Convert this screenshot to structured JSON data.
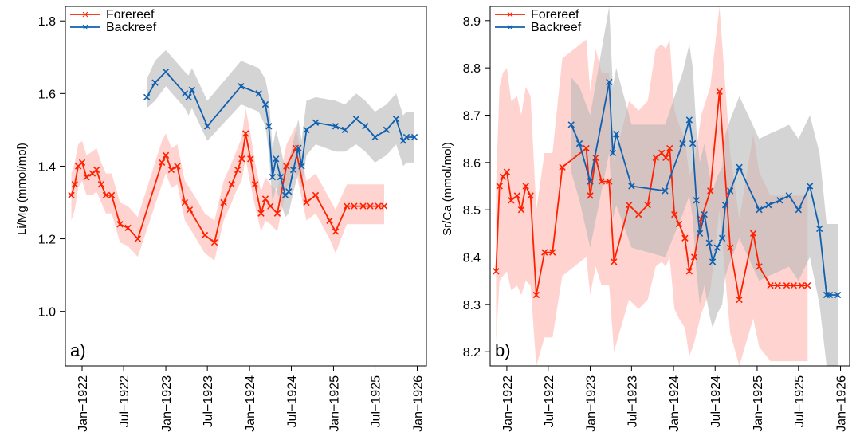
{
  "chart_data": [
    {
      "type": "line",
      "panel_label": "a)",
      "ylabel": "Li/Mg (mmol/mol)",
      "xlabel": "",
      "ylim": [
        0.85,
        1.84
      ],
      "xlim": [
        "1921-10-20",
        "1926-02-10"
      ],
      "y_ticks": [
        1.0,
        1.2,
        1.4,
        1.6,
        1.8
      ],
      "y_tick_labels": [
        "1.0",
        "1.2",
        "1.4",
        "1.6",
        "1.8"
      ],
      "x_ticks": [
        "1922-01-01",
        "1922-07-01",
        "1923-01-01",
        "1923-07-01",
        "1924-01-01",
        "1924-07-01",
        "1925-01-01",
        "1925-07-01",
        "1926-01-01"
      ],
      "x_tick_labels": [
        "Jan−1922",
        "Jul−1922",
        "Jan−1923",
        "Jul−1923",
        "Jan−1924",
        "Jul−1924",
        "Jan−1925",
        "Jul−1925",
        "Jan−1926"
      ],
      "legend": "top-left",
      "grid": false,
      "series": [
        {
          "name": "Forereef",
          "color": "#ff2000",
          "band_color": "#ffb0aa",
          "x": [
            "1921-11-15",
            "1921-11-30",
            "1921-12-15",
            "1922-01-01",
            "1922-01-20",
            "1922-02-15",
            "1922-03-05",
            "1922-03-25",
            "1922-04-15",
            "1922-05-10",
            "1922-06-15",
            "1922-07-20",
            "1922-09-01",
            "1922-12-15",
            "1923-01-01",
            "1923-01-25",
            "1923-02-20",
            "1923-03-25",
            "1923-04-15",
            "1923-06-20",
            "1923-08-01",
            "1923-09-10",
            "1923-10-15",
            "1923-11-10",
            "1923-11-28",
            "1923-12-15",
            "1924-01-05",
            "1924-01-25",
            "1924-02-20",
            "1924-03-10",
            "1924-04-01",
            "1924-05-01",
            "1924-06-10",
            "1924-07-20",
            "1924-09-05",
            "1924-10-15",
            "1924-12-15",
            "1925-01-10",
            "1925-02-28",
            "1925-04-01",
            "1925-05-10",
            "1925-06-10",
            "1925-07-15",
            "1925-08-10"
          ],
          "y": [
            1.32,
            1.35,
            1.4,
            1.41,
            1.37,
            1.38,
            1.39,
            1.35,
            1.32,
            1.32,
            1.24,
            1.23,
            1.2,
            1.41,
            1.43,
            1.39,
            1.4,
            1.3,
            1.28,
            1.21,
            1.19,
            1.3,
            1.35,
            1.39,
            1.42,
            1.49,
            1.42,
            1.35,
            1.27,
            1.31,
            1.29,
            1.27,
            1.4,
            1.45,
            1.3,
            1.32,
            1.25,
            1.22,
            1.29,
            1.29,
            1.29,
            1.29,
            1.29,
            1.29
          ],
          "lower": [
            1.25,
            1.28,
            1.34,
            1.36,
            1.32,
            1.32,
            1.33,
            1.3,
            1.27,
            1.27,
            1.19,
            1.18,
            1.15,
            1.35,
            1.38,
            1.34,
            1.35,
            1.25,
            1.23,
            1.16,
            1.14,
            1.25,
            1.3,
            1.34,
            1.36,
            1.42,
            1.35,
            1.29,
            1.22,
            1.25,
            1.24,
            1.22,
            1.34,
            1.39,
            1.25,
            1.27,
            1.2,
            1.16,
            1.24,
            1.24,
            1.24,
            1.24,
            1.24,
            1.24
          ],
          "upper": [
            1.38,
            1.41,
            1.46,
            1.47,
            1.43,
            1.44,
            1.45,
            1.41,
            1.38,
            1.38,
            1.3,
            1.29,
            1.26,
            1.47,
            1.49,
            1.45,
            1.46,
            1.36,
            1.34,
            1.27,
            1.25,
            1.36,
            1.41,
            1.45,
            1.48,
            1.56,
            1.49,
            1.41,
            1.33,
            1.37,
            1.35,
            1.33,
            1.46,
            1.51,
            1.36,
            1.38,
            1.31,
            1.28,
            1.35,
            1.35,
            1.35,
            1.35,
            1.35,
            1.35
          ]
        },
        {
          "name": "Backreef",
          "color": "#1060b0",
          "band_color": "#b8b8b8",
          "x": [
            "1922-10-10",
            "1922-11-15",
            "1923-01-01",
            "1923-03-25",
            "1923-04-10",
            "1923-04-25",
            "1923-07-01",
            "1923-11-25",
            "1924-02-10",
            "1924-03-10",
            "1924-03-25",
            "1924-04-10",
            "1924-04-25",
            "1924-05-15",
            "1924-06-05",
            "1924-06-20",
            "1924-07-10",
            "1924-08-01",
            "1924-08-15",
            "1924-09-05",
            "1924-10-15",
            "1925-01-10",
            "1925-02-20",
            "1925-04-10",
            "1925-05-20",
            "1925-07-01",
            "1925-08-20",
            "1925-10-01",
            "1925-11-01",
            "1925-11-15",
            "1925-12-20"
          ],
          "y": [
            1.59,
            1.63,
            1.66,
            1.6,
            1.59,
            1.61,
            1.51,
            1.62,
            1.6,
            1.57,
            1.51,
            1.37,
            1.42,
            1.37,
            1.32,
            1.33,
            1.39,
            1.45,
            1.4,
            1.5,
            1.52,
            1.51,
            1.5,
            1.53,
            1.51,
            1.48,
            1.5,
            1.53,
            1.47,
            1.48,
            1.48
          ],
          "lower": [
            1.56,
            1.58,
            1.62,
            1.56,
            1.54,
            1.56,
            1.47,
            1.57,
            1.55,
            1.51,
            1.44,
            1.3,
            1.34,
            1.3,
            1.26,
            1.27,
            1.33,
            1.38,
            1.34,
            1.43,
            1.46,
            1.44,
            1.44,
            1.46,
            1.44,
            1.41,
            1.43,
            1.46,
            1.4,
            1.41,
            1.41
          ],
          "upper": [
            1.64,
            1.69,
            1.72,
            1.66,
            1.65,
            1.67,
            1.58,
            1.69,
            1.67,
            1.64,
            1.59,
            1.45,
            1.5,
            1.45,
            1.39,
            1.41,
            1.47,
            1.53,
            1.47,
            1.58,
            1.59,
            1.58,
            1.57,
            1.6,
            1.58,
            1.55,
            1.57,
            1.6,
            1.54,
            1.55,
            1.55
          ]
        }
      ]
    },
    {
      "type": "line",
      "panel_label": "b)",
      "ylabel": "Sr/Ca (mmol/mol)",
      "xlabel": "",
      "ylim": [
        8.17,
        8.93
      ],
      "xlim": [
        "1921-10-20",
        "1926-02-10"
      ],
      "y_ticks": [
        8.2,
        8.3,
        8.4,
        8.5,
        8.6,
        8.7,
        8.8,
        8.9
      ],
      "y_tick_labels": [
        "8.2",
        "8.3",
        "8.4",
        "8.5",
        "8.6",
        "8.7",
        "8.8",
        "8.9"
      ],
      "x_ticks": [
        "1922-01-01",
        "1922-07-01",
        "1923-01-01",
        "1923-07-01",
        "1924-01-01",
        "1924-07-01",
        "1925-01-01",
        "1925-07-01",
        "1926-01-01"
      ],
      "x_tick_labels": [
        "Jan−1922",
        "Jul−1922",
        "Jan−1923",
        "Jul−1923",
        "Jan−1924",
        "Jul−1924",
        "Jan−1925",
        "Jul−1925",
        "Jan−1926"
      ],
      "legend": "top-left",
      "grid": false,
      "series": [
        {
          "name": "Forereef",
          "color": "#ff2000",
          "band_color": "#ffb0aa",
          "x": [
            "1921-11-15",
            "1921-11-30",
            "1921-12-15",
            "1922-01-01",
            "1922-01-20",
            "1922-02-15",
            "1922-03-05",
            "1922-03-25",
            "1922-04-15",
            "1922-05-10",
            "1922-06-15",
            "1922-07-20",
            "1922-09-01",
            "1922-12-15",
            "1923-01-01",
            "1923-01-25",
            "1923-02-20",
            "1923-03-25",
            "1923-04-15",
            "1923-06-20",
            "1923-08-01",
            "1923-09-10",
            "1923-10-15",
            "1923-11-10",
            "1923-11-28",
            "1923-12-15",
            "1924-01-05",
            "1924-01-25",
            "1924-02-20",
            "1924-03-10",
            "1924-04-01",
            "1924-05-01",
            "1924-06-10",
            "1924-07-20",
            "1924-09-05",
            "1924-10-15",
            "1924-12-15",
            "1925-01-10",
            "1925-02-28",
            "1925-04-01",
            "1925-05-10",
            "1925-06-10",
            "1925-07-15",
            "1925-08-10"
          ],
          "y": [
            8.37,
            8.55,
            8.57,
            8.58,
            8.52,
            8.53,
            8.5,
            8.55,
            8.53,
            8.32,
            8.41,
            8.41,
            8.59,
            8.63,
            8.53,
            8.61,
            8.56,
            8.56,
            8.39,
            8.51,
            8.49,
            8.51,
            8.61,
            8.62,
            8.61,
            8.63,
            8.49,
            8.47,
            8.44,
            8.37,
            8.4,
            8.48,
            8.54,
            8.75,
            8.42,
            8.31,
            8.45,
            8.38,
            8.34,
            8.34,
            8.34,
            8.34,
            8.34,
            8.34
          ],
          "lower": [
            8.22,
            8.35,
            8.36,
            8.37,
            8.33,
            8.34,
            8.32,
            8.35,
            8.34,
            8.17,
            8.23,
            8.23,
            8.36,
            8.4,
            8.32,
            8.38,
            8.34,
            8.34,
            8.2,
            8.31,
            8.29,
            8.31,
            8.38,
            8.39,
            8.38,
            8.4,
            8.29,
            8.27,
            8.25,
            8.19,
            8.22,
            8.28,
            8.33,
            8.5,
            8.24,
            8.17,
            8.27,
            8.21,
            8.18,
            8.18,
            8.18,
            8.18,
            8.18,
            8.18
          ],
          "upper": [
            8.55,
            8.76,
            8.79,
            8.8,
            8.73,
            8.74,
            8.7,
            8.76,
            8.74,
            8.5,
            8.62,
            8.62,
            8.82,
            8.86,
            8.75,
            8.84,
            8.79,
            8.79,
            8.6,
            8.73,
            8.71,
            8.73,
            8.84,
            8.85,
            8.84,
            8.86,
            8.71,
            8.68,
            8.65,
            8.57,
            8.6,
            8.7,
            8.76,
            8.93,
            8.62,
            8.48,
            8.66,
            8.58,
            8.53,
            8.53,
            8.53,
            8.53,
            8.53,
            8.53
          ]
        },
        {
          "name": "Backreef",
          "color": "#1060b0",
          "band_color": "#b8b8b8",
          "x": [
            "1922-10-10",
            "1922-11-15",
            "1923-01-01",
            "1923-03-25",
            "1923-04-10",
            "1923-04-25",
            "1923-07-01",
            "1923-11-25",
            "1924-02-10",
            "1924-03-10",
            "1924-03-25",
            "1924-04-10",
            "1924-04-25",
            "1924-05-15",
            "1924-06-05",
            "1924-06-20",
            "1924-07-10",
            "1924-08-01",
            "1924-08-15",
            "1924-09-05",
            "1924-10-15",
            "1925-01-10",
            "1925-02-20",
            "1925-04-10",
            "1925-05-20",
            "1925-07-01",
            "1925-08-20",
            "1925-10-01",
            "1925-11-01",
            "1925-11-15",
            "1925-12-20"
          ],
          "y": [
            8.68,
            8.64,
            8.56,
            8.77,
            8.62,
            8.66,
            8.55,
            8.54,
            8.64,
            8.69,
            8.64,
            8.52,
            8.45,
            8.49,
            8.43,
            8.39,
            8.42,
            8.44,
            8.51,
            8.54,
            8.59,
            8.5,
            8.51,
            8.52,
            8.53,
            8.5,
            8.55,
            8.46,
            8.32,
            8.32,
            8.32
          ],
          "lower": [
            8.58,
            8.52,
            8.42,
            8.62,
            8.48,
            8.51,
            8.42,
            8.4,
            8.49,
            8.53,
            8.48,
            8.37,
            8.3,
            8.34,
            8.28,
            8.25,
            8.28,
            8.3,
            8.36,
            8.39,
            8.44,
            8.35,
            8.36,
            8.37,
            8.38,
            8.35,
            8.4,
            8.3,
            8.17,
            8.17,
            8.17
          ],
          "upper": [
            8.78,
            8.76,
            8.7,
            8.93,
            8.76,
            8.8,
            8.68,
            8.68,
            8.79,
            8.85,
            8.8,
            8.67,
            8.6,
            8.64,
            8.58,
            8.54,
            8.57,
            8.59,
            8.66,
            8.69,
            8.74,
            8.65,
            8.66,
            8.67,
            8.68,
            8.65,
            8.7,
            8.62,
            8.47,
            8.47,
            8.47
          ]
        }
      ]
    }
  ]
}
